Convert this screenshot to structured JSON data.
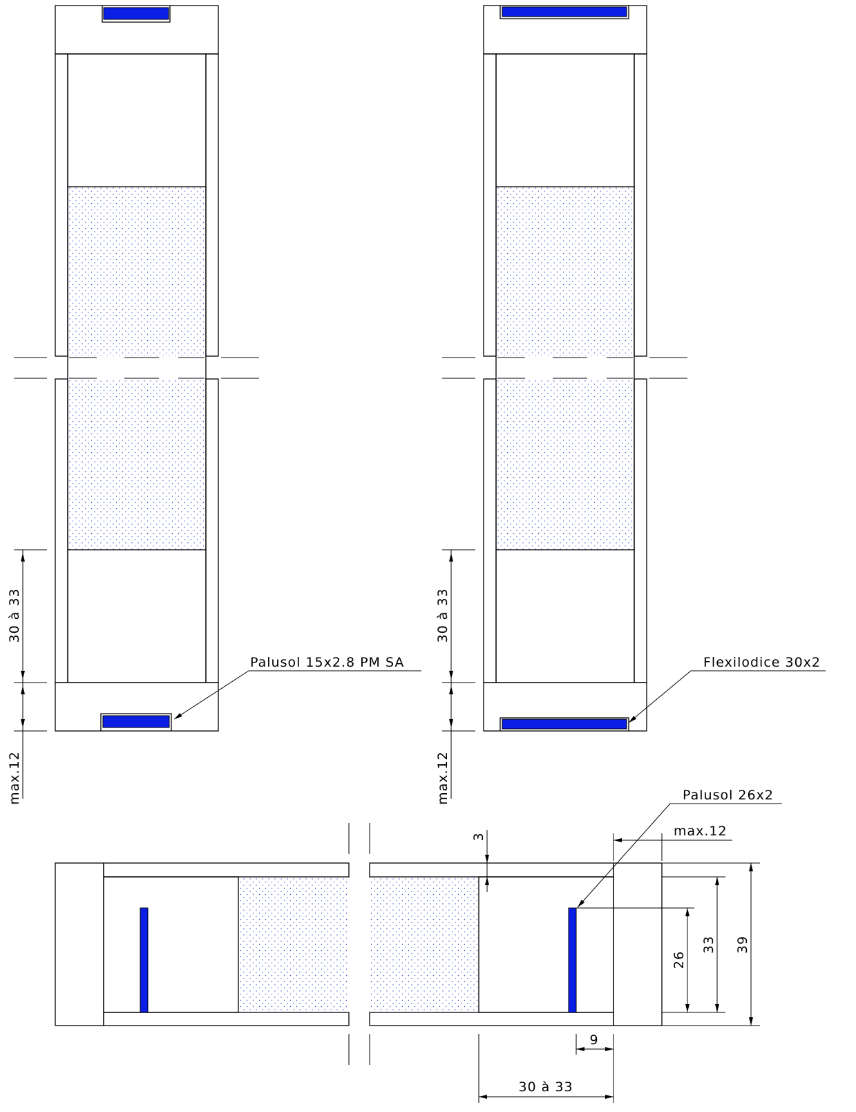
{
  "elevations": [
    {
      "dimensions": [
        "30 à 33",
        "max.12"
      ],
      "label": "Palusol 15x2.8 PM SA"
    },
    {
      "dimensions": [
        "30 à 33",
        "max.12"
      ],
      "label": "Flexilodice 30x2"
    }
  ],
  "section": {
    "label": "Palusol 26x2",
    "dimensions": [
      "3",
      "max.12",
      "26",
      "33",
      "39",
      "9",
      "30 à 33"
    ]
  }
}
